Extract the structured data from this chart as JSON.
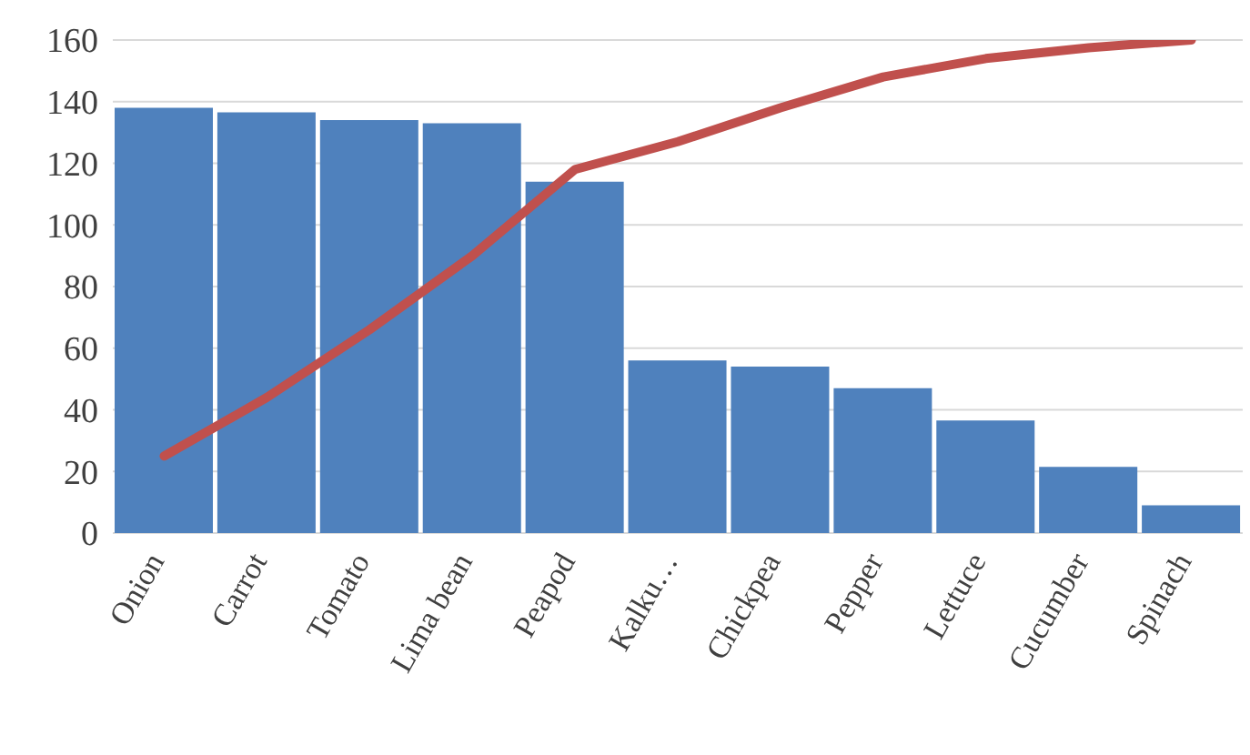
{
  "chart_data": {
    "type": "bar",
    "categories": [
      "Onion",
      "Carrot",
      "Tomato",
      "Lima bean",
      "Peapod",
      "Kalku…",
      "Chickpea",
      "Pepper",
      "Lettuce",
      "Cucumber",
      "Spinach"
    ],
    "series": [
      {
        "color": "#4f81bd",
        "values": [
          138,
          136.5,
          134,
          133,
          114,
          56,
          54,
          47,
          36.5,
          21.5,
          9
        ]
      },
      {
        "type": "line",
        "color": "#c0504d",
        "values": [
          25,
          44,
          66,
          90,
          118,
          127,
          138,
          148,
          154,
          157.5,
          160
        ]
      }
    ],
    "ylim": [
      0,
      160
    ],
    "yticks": [
      0,
      20,
      40,
      60,
      80,
      100,
      120,
      140,
      160
    ],
    "grid": "y",
    "legend": false
  }
}
